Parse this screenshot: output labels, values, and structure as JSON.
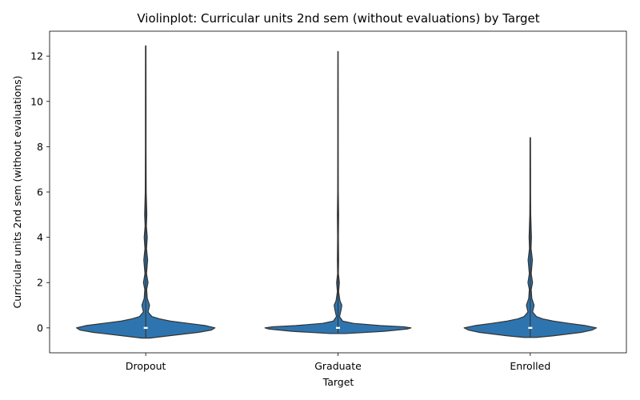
{
  "chart_data": {
    "type": "violin",
    "title": "Violinplot: Curricular units 2nd sem (without evaluations) by Target",
    "xlabel": "Target",
    "ylabel": "Curricular units 2nd sem (without evaluations)",
    "categories": [
      "Dropout",
      "Graduate",
      "Enrolled"
    ],
    "ylim": [
      -1.1,
      13.1
    ],
    "yticks": [
      0,
      2,
      4,
      6,
      8,
      10,
      12
    ],
    "grid": false,
    "legend": "none",
    "color": "#2e75b0",
    "edge_color": "#333333",
    "violins": [
      {
        "category": "Dropout",
        "median": 0,
        "min": -0.45,
        "max": 12.45,
        "profile": [
          [
            -0.45,
            0.05
          ],
          [
            -0.35,
            0.3
          ],
          [
            -0.2,
            0.68
          ],
          [
            -0.1,
            0.85
          ],
          [
            0,
            0.9
          ],
          [
            0.1,
            0.78
          ],
          [
            0.2,
            0.55
          ],
          [
            0.3,
            0.32
          ],
          [
            0.4,
            0.18
          ],
          [
            0.5,
            0.08
          ],
          [
            0.7,
            0.03
          ],
          [
            1.0,
            0.05
          ],
          [
            1.3,
            0.02
          ],
          [
            1.7,
            0.012
          ],
          [
            2.0,
            0.03
          ],
          [
            2.4,
            0.01
          ],
          [
            3.0,
            0.025
          ],
          [
            3.5,
            0.01
          ],
          [
            4.0,
            0.02
          ],
          [
            4.5,
            0.008
          ],
          [
            5.0,
            0.014
          ],
          [
            6.0,
            0.006
          ],
          [
            8.0,
            0.004
          ],
          [
            10.0,
            0.004
          ],
          [
            12.45,
            0.003
          ]
        ]
      },
      {
        "category": "Graduate",
        "median": 0,
        "min": -0.25,
        "max": 12.2,
        "profile": [
          [
            -0.25,
            0.1
          ],
          [
            -0.15,
            0.6
          ],
          [
            -0.05,
            0.9
          ],
          [
            0,
            0.95
          ],
          [
            0.05,
            0.85
          ],
          [
            0.1,
            0.55
          ],
          [
            0.2,
            0.2
          ],
          [
            0.3,
            0.06
          ],
          [
            0.5,
            0.02
          ],
          [
            0.8,
            0.04
          ],
          [
            1.0,
            0.05
          ],
          [
            1.2,
            0.025
          ],
          [
            1.6,
            0.008
          ],
          [
            2.0,
            0.018
          ],
          [
            2.4,
            0.005
          ],
          [
            3.0,
            0.008
          ],
          [
            4.0,
            0.005
          ],
          [
            5.0,
            0.008
          ],
          [
            6.0,
            0.004
          ],
          [
            8.0,
            0.003
          ],
          [
            10.0,
            0.003
          ],
          [
            12.2,
            0.002
          ]
        ]
      },
      {
        "category": "Enrolled",
        "median": 0,
        "min": -0.42,
        "max": 8.4,
        "profile": [
          [
            -0.42,
            0.08
          ],
          [
            -0.35,
            0.3
          ],
          [
            -0.2,
            0.66
          ],
          [
            -0.1,
            0.8
          ],
          [
            0,
            0.86
          ],
          [
            0.1,
            0.72
          ],
          [
            0.2,
            0.5
          ],
          [
            0.3,
            0.3
          ],
          [
            0.4,
            0.16
          ],
          [
            0.5,
            0.08
          ],
          [
            0.7,
            0.03
          ],
          [
            1.0,
            0.05
          ],
          [
            1.3,
            0.02
          ],
          [
            1.7,
            0.012
          ],
          [
            2.0,
            0.03
          ],
          [
            2.4,
            0.012
          ],
          [
            3.0,
            0.028
          ],
          [
            3.5,
            0.01
          ],
          [
            4.0,
            0.015
          ],
          [
            5.0,
            0.006
          ],
          [
            6.0,
            0.004
          ],
          [
            7.0,
            0.004
          ],
          [
            8.4,
            0.003
          ]
        ]
      }
    ]
  }
}
